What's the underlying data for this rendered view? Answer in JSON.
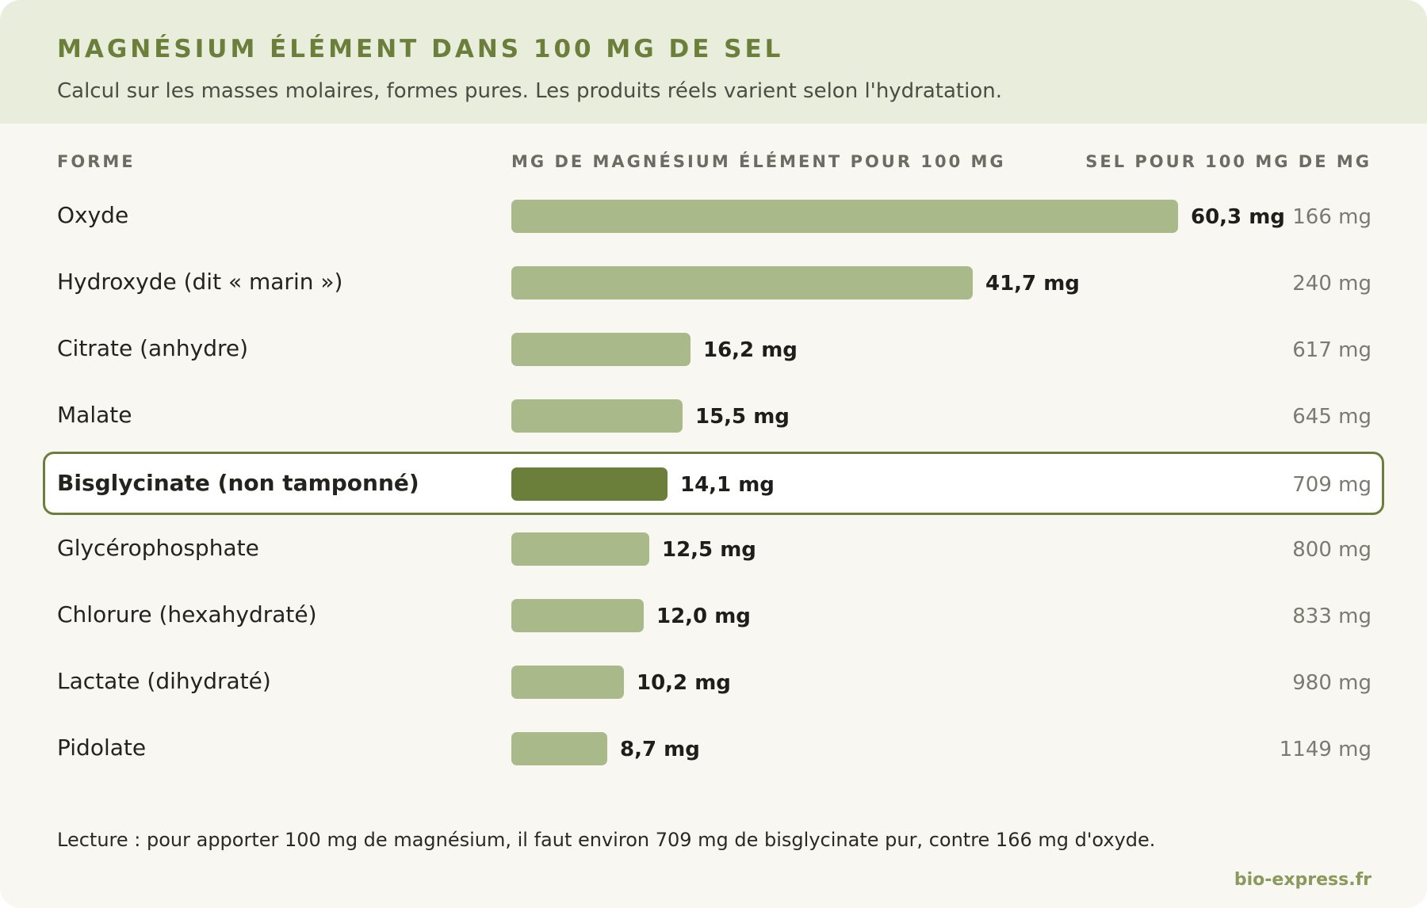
{
  "header": {
    "title": "MAGNÉSIUM ÉLÉMENT DANS 100 MG DE SEL",
    "subtitle": "Calcul sur les masses molaires, formes pures. Les produits réels varient selon l'hydratation."
  },
  "columns": {
    "forme": "FORME",
    "mg": "MG DE MAGNÉSIUM ÉLÉMENT POUR 100 MG",
    "salt": "SEL POUR 100 MG DE MG"
  },
  "colors": {
    "bar": "#aab98a",
    "highlight_bar": "#6b7f3a",
    "accent": "#6b7f3a",
    "header_bg": "#e8eddc"
  },
  "chart_data": {
    "type": "bar",
    "orientation": "horizontal",
    "categories": [
      "Oxyde",
      "Hydroxyde (dit « marin »)",
      "Citrate (anhydre)",
      "Malate",
      "Bisglycinate (non tamponné)",
      "Glycérophosphate",
      "Chlorure (hexahydraté)",
      "Lactate (dihydraté)",
      "Pidolate"
    ],
    "values": [
      60.3,
      41.7,
      16.2,
      15.5,
      14.1,
      12.5,
      12.0,
      10.2,
      8.7
    ],
    "value_labels": [
      "60,3 mg",
      "41,7 mg",
      "16,2 mg",
      "15,5 mg",
      "14,1 mg",
      "12,5 mg",
      "12,0 mg",
      "10,2 mg",
      "8,7 mg"
    ],
    "salt_labels": [
      "166 mg",
      "240 mg",
      "617 mg",
      "645 mg",
      "709 mg",
      "800 mg",
      "833 mg",
      "980 mg",
      "1149 mg"
    ],
    "highlighted": "Bisglycinate (non tamponné)",
    "xlim": [
      0,
      60.3
    ],
    "grid": false
  },
  "footer": {
    "note": "Lecture : pour apporter 100 mg de magnésium, il faut environ 709 mg de bisglycinate pur, contre 166 mg d'oxyde.",
    "source": "bio-express.fr"
  }
}
